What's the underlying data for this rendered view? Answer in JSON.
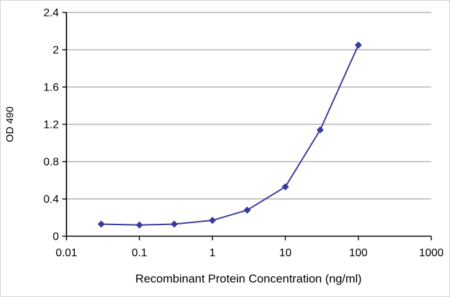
{
  "figure": {
    "background": "#ffffff",
    "border_color": "#d4d4d4"
  },
  "chart_data": {
    "type": "line",
    "title": "",
    "xlabel": "Recombinant Protein Concentration (ng/ml)",
    "ylabel": "OD 490",
    "x_scale": "log",
    "xlim": [
      0.01,
      1000
    ],
    "ylim": [
      0,
      2.4
    ],
    "xticks": [
      0.01,
      0.1,
      1,
      10,
      100,
      1000
    ],
    "xtick_labels": [
      "0.01",
      "0.1",
      "1",
      "10",
      "100",
      "1000"
    ],
    "yticks": [
      0,
      0.4,
      0.8,
      1.2,
      1.6,
      2,
      2.4
    ],
    "ytick_labels": [
      "0",
      "0.4",
      "0.8",
      "1.2",
      "1.6",
      "2",
      "2.4"
    ],
    "grid": "horizontal",
    "grid_color": "#8c8c8c",
    "axis_color": "#000000",
    "legend": "none",
    "series": [
      {
        "name": "OD 490",
        "marker": "diamond",
        "color": "#3a3a9a",
        "x": [
          0.03,
          0.1,
          0.3,
          1,
          3,
          10,
          30,
          100
        ],
        "y": [
          0.13,
          0.12,
          0.13,
          0.17,
          0.28,
          0.53,
          1.14,
          2.05
        ]
      }
    ]
  }
}
